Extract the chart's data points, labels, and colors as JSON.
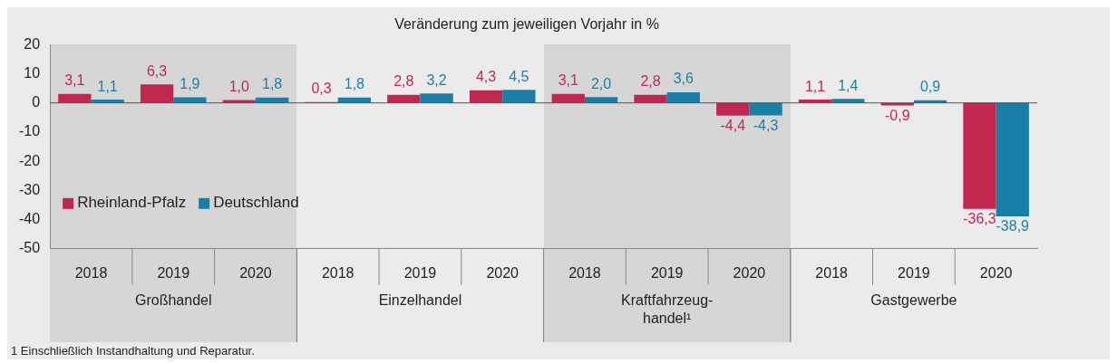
{
  "chart_data": {
    "type": "bar",
    "title": "Veränderung zum jeweiligen Vorjahr in %",
    "categories": [
      "2018",
      "2019",
      "2020",
      "2018",
      "2019",
      "2020",
      "2018",
      "2019",
      "2020",
      "2018",
      "2019",
      "2020"
    ],
    "series": [
      {
        "name": "Rheinland-Pfalz",
        "color": "#c0284f",
        "values": [
          3.1,
          6.3,
          1.0,
          0.3,
          2.8,
          4.3,
          3.1,
          2.8,
          -4.4,
          1.1,
          -0.9,
          -36.3
        ],
        "value_labels": [
          "3,1",
          "6,3",
          "1,0",
          "0,3",
          "2,8",
          "4,3",
          "3,1",
          "2,8",
          "-4,4",
          "1,1",
          "-0,9",
          "-36,3"
        ]
      },
      {
        "name": "Deutschland",
        "color": "#1a7fa8",
        "values": [
          1.1,
          1.9,
          1.8,
          1.8,
          3.2,
          4.5,
          2.0,
          3.6,
          -4.3,
          1.4,
          0.9,
          -38.9
        ],
        "value_labels": [
          "1,1",
          "1,9",
          "1,8",
          "1,8",
          "3,2",
          "4,5",
          "2,0",
          "3,6",
          "-4,3",
          "1,4",
          "0,9",
          "-38,9"
        ]
      }
    ],
    "ylim": [
      -50,
      20
    ],
    "yticks": [
      -50,
      -40,
      -30,
      -20,
      -10,
      0,
      10,
      20
    ],
    "grid": false,
    "legend": "bottom left",
    "ref_lines": [
      {
        "axis": "y",
        "value": 0,
        "color": "#555555"
      }
    ],
    "annotations": [
      "Großhandel",
      "Einzelhandel",
      "Kraftfahrzeug-\nhandel¹",
      "Gastgewerbe",
      "1 Einschließlich Instandhaltung und Reparatur."
    ]
  }
}
